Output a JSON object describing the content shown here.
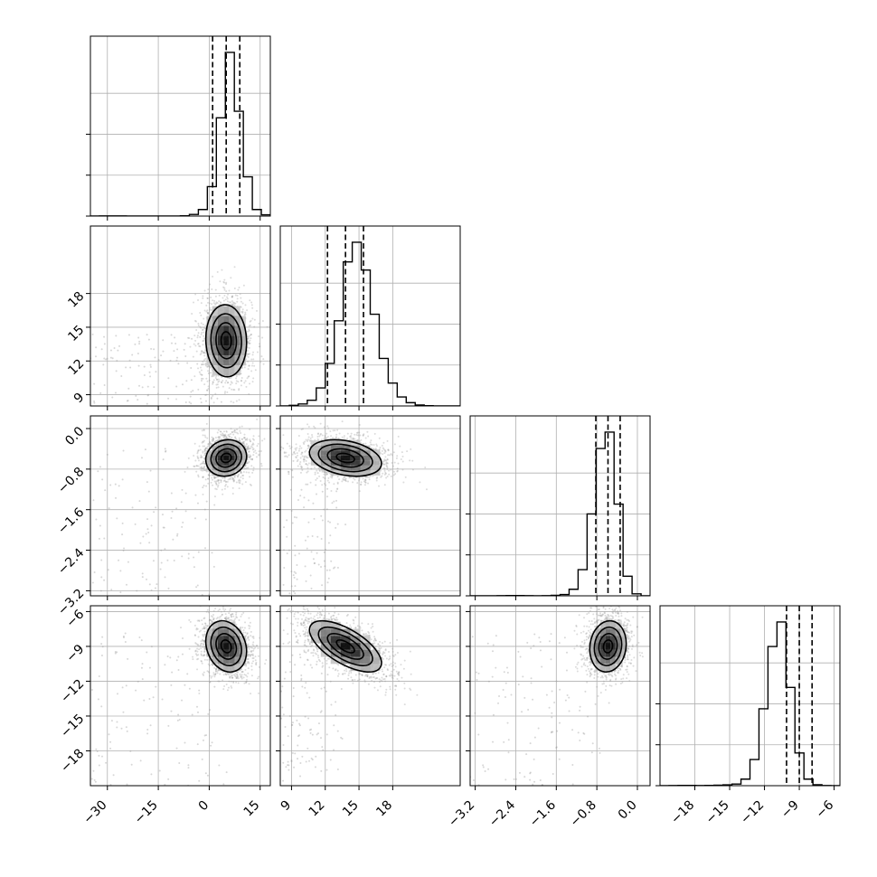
{
  "chart_data": {
    "type": "corner",
    "description": "",
    "grid": true,
    "colors": {
      "line": "#000000",
      "grid": "#b0b0b0",
      "density_dark": "#000000",
      "density_light": "#e0e0e0",
      "points": "#9a9a9a"
    },
    "parameters": [
      {
        "range": [
          -35,
          18
        ],
        "ticks": [
          -30,
          -15,
          0,
          15
        ],
        "tick_labels": [
          "−30",
          "−15",
          "0",
          "15"
        ],
        "median": 5.0,
        "q16": 1.0,
        "q84": 9.0
      },
      {
        "range": [
          8,
          24
        ],
        "ticks": [
          9,
          12,
          15,
          18
        ],
        "tick_labels": [
          "9",
          "12",
          "15",
          "18"
        ],
        "median": 13.8,
        "q16": 12.2,
        "q84": 15.4
      },
      {
        "range": [
          -3.3,
          0.25
        ],
        "ticks": [
          -3.2,
          -2.4,
          -1.6,
          -0.8,
          0.0
        ],
        "tick_labels": [
          "−3.2",
          "−2.4",
          "−1.6",
          "−0.8",
          "0.0"
        ],
        "median": -0.58,
        "q16": -0.82,
        "q84": -0.34
      },
      {
        "range": [
          -21,
          -5.5
        ],
        "ticks": [
          -18,
          -15,
          -12,
          -9,
          -6
        ],
        "tick_labels": [
          "−18",
          "−15",
          "−12",
          "−9",
          "−6"
        ],
        "median": -9.0,
        "q16": -10.1,
        "q84": -7.9
      }
    ],
    "histograms": [
      {
        "param": 0,
        "edges": [
          -35,
          -32.35,
          -29.7,
          -27.05,
          -24.4,
          -21.75,
          -19.1,
          -16.45,
          -13.8,
          -11.15,
          -8.5,
          -5.85,
          -3.2,
          -0.55,
          2.1,
          4.75,
          7.4,
          10.05,
          12.7,
          15.35,
          18
        ],
        "counts": [
          0,
          1,
          1,
          1,
          0,
          0,
          0,
          0,
          0,
          0,
          2,
          10,
          40,
          180,
          600,
          1000,
          640,
          240,
          40,
          8
        ]
      },
      {
        "param": 1,
        "edges": [
          8,
          8.8,
          9.6,
          10.4,
          11.2,
          12,
          12.8,
          13.6,
          14.4,
          15.2,
          16,
          16.8,
          17.6,
          18.4,
          19.2,
          20,
          20.8,
          21.6,
          22.4,
          23.2,
          24
        ],
        "counts": [
          0,
          4,
          12,
          35,
          110,
          260,
          520,
          880,
          1000,
          830,
          560,
          290,
          140,
          55,
          20,
          6,
          2,
          0,
          0,
          0
        ]
      },
      {
        "param": 2,
        "edges": [
          -3.3,
          -3.1225,
          -2.945,
          -2.7675,
          -2.59,
          -2.4125,
          -2.235,
          -2.0575,
          -1.88,
          -1.7025,
          -1.525,
          -1.3475,
          -1.17,
          -0.9925,
          -0.815,
          -0.6375,
          -0.46,
          -0.2825,
          -0.105,
          0.0725,
          0.25
        ],
        "counts": [
          0,
          0,
          0,
          1,
          2,
          2,
          1,
          0,
          1,
          3,
          8,
          40,
          160,
          500,
          900,
          1000,
          560,
          120,
          12,
          0
        ]
      },
      {
        "param": 3,
        "edges": [
          -21,
          -20.225,
          -19.45,
          -18.675,
          -17.9,
          -17.125,
          -16.35,
          -15.575,
          -14.8,
          -14.025,
          -13.25,
          -12.475,
          -11.7,
          -10.925,
          -10.15,
          -9.375,
          -8.6,
          -7.825,
          -7.05,
          -6.275,
          -5.5
        ],
        "counts": [
          0,
          1,
          2,
          2,
          1,
          2,
          3,
          5,
          10,
          40,
          160,
          470,
          850,
          1000,
          600,
          200,
          40,
          6,
          1,
          0
        ]
      }
    ],
    "joint": [
      {
        "x": 0,
        "y": 1,
        "mean": [
          5.0,
          13.8
        ],
        "sd": [
          3.0,
          1.6
        ],
        "rho": -0.05,
        "outliers": 120
      },
      {
        "x": 0,
        "y": 2,
        "mean": [
          5.0,
          -0.58
        ],
        "sd": [
          3.0,
          0.18
        ],
        "rho": 0.1,
        "outliers": 120
      },
      {
        "x": 1,
        "y": 2,
        "mean": [
          13.8,
          -0.58
        ],
        "sd": [
          1.6,
          0.18
        ],
        "rho": -0.3,
        "outliers": 120
      },
      {
        "x": 0,
        "y": 3,
        "mean": [
          5.0,
          -9.0
        ],
        "sd": [
          3.0,
          1.1
        ],
        "rho": -0.2,
        "outliers": 120
      },
      {
        "x": 1,
        "y": 3,
        "mean": [
          13.8,
          -9.0
        ],
        "sd": [
          1.6,
          1.1
        ],
        "rho": -0.65,
        "outliers": 120
      },
      {
        "x": 2,
        "y": 3,
        "mean": [
          -0.58,
          -9.0
        ],
        "sd": [
          0.18,
          1.1
        ],
        "rho": 0.1,
        "outliers": 120
      }
    ]
  }
}
